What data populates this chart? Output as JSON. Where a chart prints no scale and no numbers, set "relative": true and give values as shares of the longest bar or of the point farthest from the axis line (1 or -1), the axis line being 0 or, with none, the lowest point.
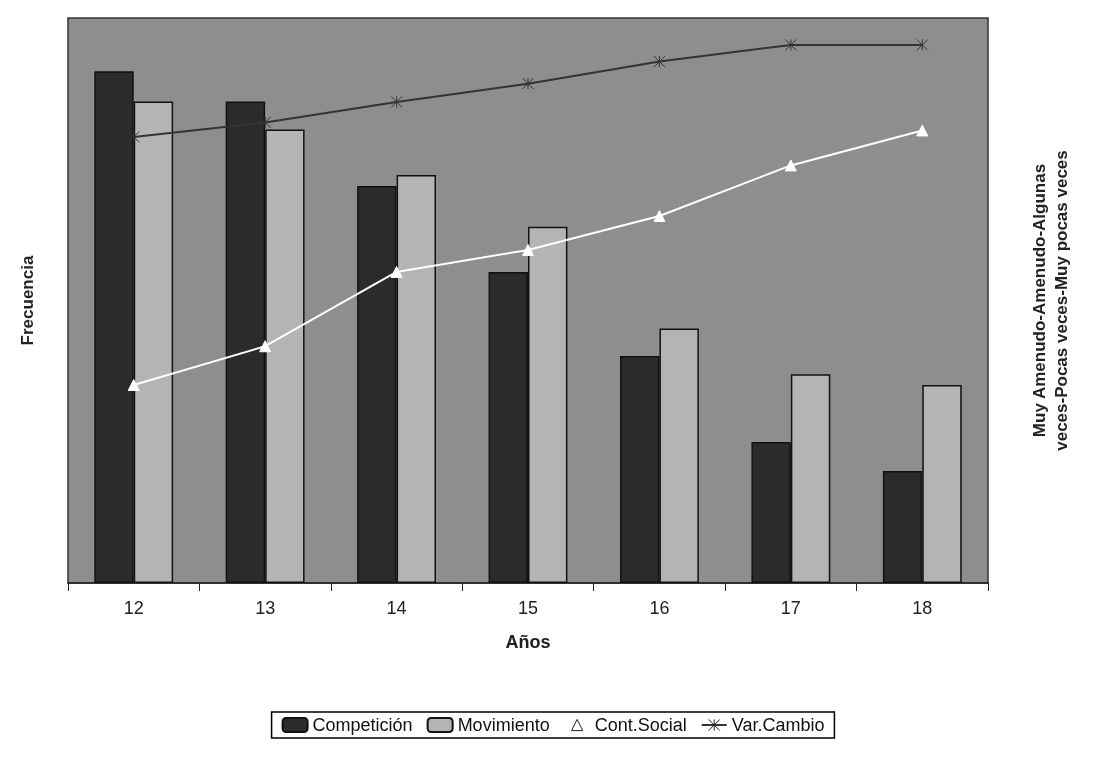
{
  "chart_data": {
    "type": "bar",
    "xlabel": "Años",
    "ylabel": "Frecuencia",
    "y2label": "Muy Amenudo-Amenudo-Algunas veces-Pocas veces-Muy pocas veces",
    "relative": true,
    "categories": [
      "12",
      "13",
      "14",
      "15",
      "16",
      "17",
      "18"
    ],
    "series": [
      {
        "name": "Competición",
        "color": "#2b2b2b",
        "values": [
          0.951,
          0.895,
          0.738,
          0.578,
          0.422,
          0.262,
          0.208
        ]
      },
      {
        "name": "Movimiento",
        "color": "#b4b4b4",
        "values": [
          0.895,
          0.843,
          0.758,
          0.662,
          0.473,
          0.388,
          0.368
        ]
      },
      {
        "name": "Cont.Social",
        "type": "line",
        "color": "#ffffff",
        "marker": "triangle",
        "values": [
          0.368,
          0.44,
          0.578,
          0.619,
          0.682,
          0.776,
          0.841
        ]
      },
      {
        "name": "Var.Cambio",
        "type": "line",
        "color": "#333333",
        "marker": "cross",
        "values": [
          0.829,
          0.856,
          0.894,
          0.928,
          0.969,
          1,
          1
        ]
      }
    ],
    "legend": "bottom",
    "grid": false
  }
}
